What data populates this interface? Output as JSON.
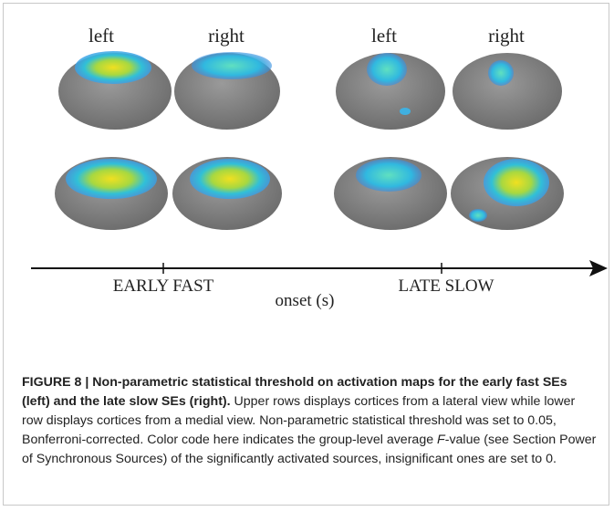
{
  "figure": {
    "labels": [
      "left",
      "right",
      "left",
      "right"
    ],
    "early_label": "EARLY FAST",
    "late_label": "LATE SLOW",
    "axis_title": "onset (s)"
  },
  "caption": {
    "title": "FIGURE 8 | Non-parametric statistical threshold on activation maps for the early fast SEs (left) and the late slow SEs (right).",
    "text_1": " Upper rows displays cortices from a lateral view while lower row displays cortices from a medial view. Non-parametric statistical threshold was set to 0.05, Bonferroni-corrected. Color code here indicates the group-level average ",
    "italic": "F",
    "text_2": "-value (see Section Power of Synchronous Sources) of the significantly activated sources, insignificant ones are set to 0."
  }
}
